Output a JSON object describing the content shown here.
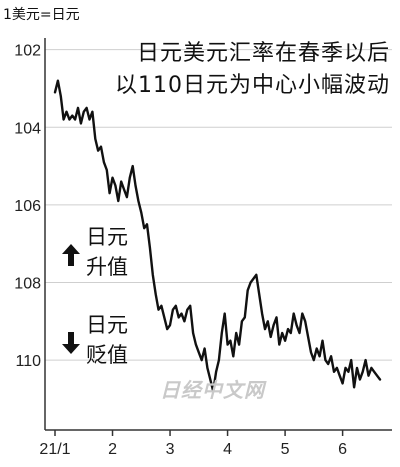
{
  "unit_label": "1美元=日元",
  "headline": {
    "line1": "日元美元汇率在春季以后",
    "line2": "以110日元为中心小幅波动"
  },
  "legend": {
    "up": {
      "line1": "日元",
      "line2": "升值",
      "icon": "up-arrow-icon"
    },
    "down": {
      "line1": "日元",
      "line2": "贬值",
      "icon": "down-arrow-icon"
    }
  },
  "watermark": "日经中文网",
  "colors": {
    "line": "#111111",
    "axis": "#333333",
    "grid": "#cfcfcf"
  },
  "chart_data": {
    "type": "line",
    "title": "",
    "xlabel": "",
    "ylabel": "1美元=日元",
    "ylim": [
      101.7,
      111.8
    ],
    "y_inverted": true,
    "yticks": [
      102,
      104,
      106,
      108,
      110
    ],
    "x_ticks": [
      {
        "label": "21/1",
        "x": 0
      },
      {
        "label": "2",
        "x": 20
      },
      {
        "label": "3",
        "x": 40
      },
      {
        "label": "4",
        "x": 60
      },
      {
        "label": "5",
        "x": 80
      },
      {
        "label": "6",
        "x": 100
      }
    ],
    "grid": "horizontal",
    "series": [
      {
        "name": "",
        "x": [
          0,
          1,
          2,
          3,
          4,
          5,
          6,
          7,
          8,
          9,
          10,
          11,
          12,
          13,
          14,
          15,
          16,
          17,
          18,
          19,
          20,
          21,
          22,
          23,
          24,
          25,
          26,
          27,
          28,
          29,
          30,
          31,
          32,
          33,
          34,
          35,
          36,
          37,
          38,
          39,
          40,
          41,
          42,
          43,
          44,
          45,
          46,
          47,
          48,
          49,
          50,
          51,
          52,
          53,
          54,
          55,
          56,
          57,
          58,
          59,
          60,
          61,
          62,
          63,
          64,
          65,
          66,
          67,
          68,
          69,
          70,
          71,
          72,
          73,
          74,
          75,
          76,
          77,
          78,
          79,
          80,
          81,
          82,
          83,
          84,
          85,
          86,
          87,
          88,
          89,
          90,
          91,
          92,
          93,
          94,
          95,
          96,
          97,
          98,
          99,
          100,
          101,
          102,
          103,
          104,
          105,
          106,
          107,
          108,
          109,
          110,
          111,
          112,
          113
        ],
        "values": [
          103.1,
          102.8,
          103.2,
          103.8,
          103.6,
          103.8,
          103.7,
          103.8,
          103.5,
          103.9,
          103.6,
          103.5,
          103.8,
          103.6,
          104.3,
          104.6,
          104.5,
          104.9,
          105.1,
          105.7,
          105.3,
          105.5,
          105.9,
          105.4,
          105.6,
          105.8,
          105.3,
          105.0,
          105.5,
          105.9,
          106.2,
          106.6,
          106.5,
          107.1,
          107.8,
          108.3,
          108.7,
          108.6,
          108.9,
          109.2,
          109.1,
          108.7,
          108.6,
          108.9,
          108.8,
          109.0,
          108.7,
          108.6,
          109.3,
          109.6,
          109.8,
          110.0,
          109.7,
          110.2,
          110.5,
          110.8,
          110.3,
          110.0,
          109.3,
          108.8,
          109.6,
          109.5,
          109.9,
          109.3,
          109.6,
          109.0,
          108.9,
          108.2,
          108.0,
          107.9,
          107.8,
          108.3,
          108.8,
          109.2,
          109.0,
          109.4,
          109.1,
          108.9,
          109.6,
          109.3,
          109.5,
          109.2,
          109.3,
          108.8,
          109.1,
          109.3,
          108.8,
          109.0,
          109.4,
          109.8,
          110.0,
          109.7,
          109.9,
          109.5,
          110.0,
          110.1,
          109.9,
          110.3,
          110.2,
          110.4,
          110.6,
          110.2,
          110.3,
          110.0,
          110.7,
          110.2,
          110.5,
          110.3,
          110.0,
          110.4,
          110.2,
          110.3,
          110.4,
          110.5
        ]
      }
    ]
  }
}
